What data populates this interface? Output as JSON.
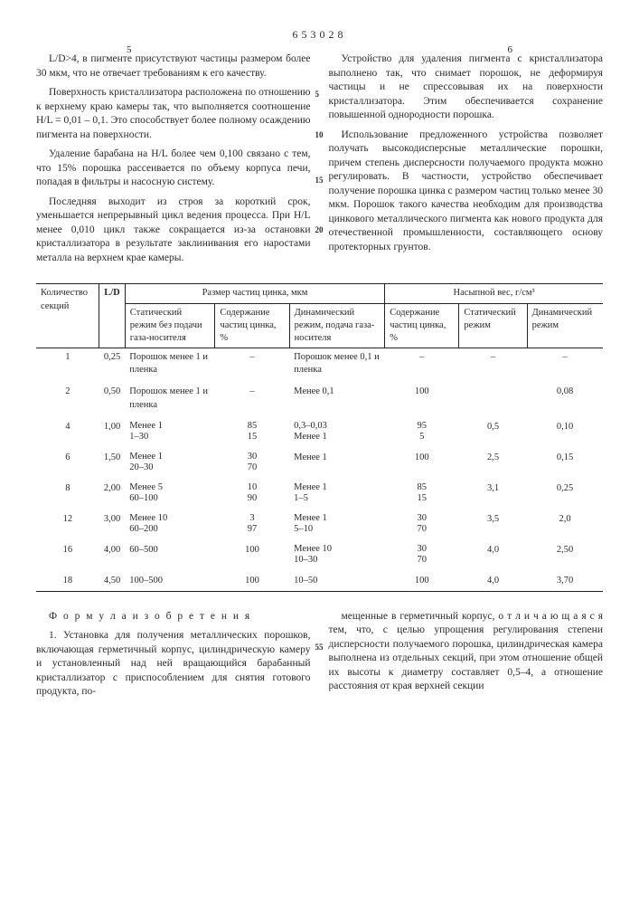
{
  "docNumber": "653028",
  "colNumLeft": "5",
  "colNumRight": "6",
  "marks": [
    "5",
    "10",
    "15",
    "20"
  ],
  "leftParas": [
    "L/D>4, в пигменте присутствуют частицы размером более 30 мкм, что не отвечает требованиям к его качеству.",
    "Поверхность кристаллизатора расположена по отношению к верхнему краю камеры так, что выполняется соотношение H/L = 0,01 – 0,1. Это способствует более полному осаждению пигмента на поверхности.",
    "Удаление барабана на H/L более чем 0,100 связано с тем, что 15% порошка рассеивается по объему корпуса печи, попадая в фильтры и насосную систему.",
    "Последняя выходит из строя за короткий срок, уменьшается непрерывный цикл ведения процесса. При H/L менее 0,010 цикл также сокращается из-за остановки кристаллизатора в результате заклинивания его наростами металла на верхнем крае камеры."
  ],
  "rightParas": [
    "Устройство для удаления пигмента с кристаллизатора выполнено так, что снимает порошок, не деформируя частицы и не спрессовывая их на поверхности кристаллизатора. Этим обеспечивается сохранение повышенной однородности порошка.",
    "Использование предложенного устройства позволяет получать высокодисперсные металлические порошки, причем степень дисперсности получаемого продукта можно регулировать. В частности, устройство обеспечивает получение порошка цинка с размером частиц только менее 30 мкм. Порошок такого качества необходим для производства цинкового металлического пигмента как нового продукта для отечественной промышленности, составляющего основу протекторных грунтов."
  ],
  "table": {
    "colHeaders": {
      "sections": "Количество секций",
      "ld": "L/D",
      "groupSize": "Размер частиц цинка, мкм",
      "groupBulk": "Насыпной вес, г/см³",
      "static": "Статический режим без подачи газа-носителя",
      "content1": "Содержание частиц цинка, %",
      "dynamic": "Динамический режим, подача газа-носителя",
      "content2": "Содержание частиц цинка, %",
      "staticMode": "Статический режим",
      "dynamicMode": "Динамический режим"
    },
    "rows": [
      {
        "n": "1",
        "ld": "0,25",
        "st": "Порошок менее 1 и пленка",
        "c1": "–",
        "dyn": "Порошок менее 0,1 и пленка",
        "c2": "–",
        "sm": "–",
        "dm": "–"
      },
      {
        "n": "2",
        "ld": "0,50",
        "st": "Порошок менее 1 и пленка",
        "c1": "–",
        "dyn": "Менее 0,1",
        "c2": "100",
        "sm": "",
        "dm": "0,08"
      },
      {
        "n": "4",
        "ld": "1,00",
        "st": "Менее 1\n1–30",
        "c1": "85\n15",
        "dyn": "0,3–0,03\nМенее 1",
        "c2": "95\n5",
        "sm": "0,5",
        "dm": "0,10"
      },
      {
        "n": "6",
        "ld": "1,50",
        "st": "Менее 1\n20–30",
        "c1": "30\n70",
        "dyn": "Менее 1",
        "c2": "100",
        "sm": "2,5",
        "dm": "0,15"
      },
      {
        "n": "8",
        "ld": "2,00",
        "st": "Менее 5\n60–100",
        "c1": "10\n90",
        "dyn": "Менее 1\n1–5",
        "c2": "85\n15",
        "sm": "3,1",
        "dm": "0,25"
      },
      {
        "n": "12",
        "ld": "3,00",
        "st": "Менее 10\n60–200",
        "c1": "3\n97",
        "dyn": "Менее 1\n5–10",
        "c2": "30\n70",
        "sm": "3,5",
        "dm": "2,0"
      },
      {
        "n": "16",
        "ld": "4,00",
        "st": "60–500",
        "c1": "100",
        "dyn": "Менее 10\n10–30",
        "c2": "30\n70",
        "sm": "4,0",
        "dm": "2,50"
      },
      {
        "n": "18",
        "ld": "4,50",
        "st": "100–500",
        "c1": "100",
        "dyn": "10–50",
        "c2": "100",
        "sm": "4,0",
        "dm": "3,70"
      }
    ]
  },
  "formulaTitle": "Ф о р м у л а   и з о б р е т е н и я",
  "marks2": [
    "55"
  ],
  "bottomLeft": "1. Установка для получения металлических порошков, включающая герметичный корпус, цилиндрическую камеру и установленный над ней вращающийся барабанный кристаллизатор с приспособлением для снятия готового продукта, по-",
  "bottomRight": "мещенные в герметичный корпус, о т л и ч а ю щ а я с я тем, что, с целью упрощения регулирования степени дисперсности получаемого порошка, цилиндрическая камера выполнена из отдельных секций, при этом отношение общей их высоты к диаметру составляет 0,5–4, а отношение расстояния от края верхней секции"
}
